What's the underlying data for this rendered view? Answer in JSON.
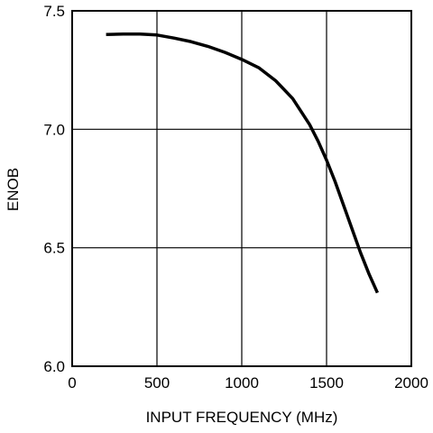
{
  "chart_data": {
    "type": "line",
    "title": "",
    "xlabel": "INPUT FREQUENCY (MHz)",
    "ylabel": "ENOB",
    "xlim": [
      0,
      2000
    ],
    "ylim": [
      6.0,
      7.5
    ],
    "xticks": [
      0,
      500,
      1000,
      1500,
      2000
    ],
    "yticks": [
      6.0,
      6.5,
      7.0,
      7.5
    ],
    "xtick_labels": [
      "0",
      "500",
      "1000",
      "1500",
      "2000"
    ],
    "ytick_labels": [
      "6.0",
      "6.5",
      "7.0",
      "7.5"
    ],
    "grid": true,
    "line_color": "#000000",
    "series": [
      {
        "x": [
          200,
          300,
          400,
          500,
          600,
          700,
          800,
          900,
          1000,
          1100,
          1200,
          1300,
          1400,
          1450,
          1500,
          1550,
          1600,
          1650,
          1700,
          1750,
          1800
        ],
        "y": [
          7.4,
          7.402,
          7.402,
          7.398,
          7.385,
          7.37,
          7.35,
          7.325,
          7.295,
          7.26,
          7.205,
          7.13,
          7.02,
          6.95,
          6.87,
          6.78,
          6.68,
          6.58,
          6.48,
          6.39,
          6.31
        ]
      }
    ]
  }
}
